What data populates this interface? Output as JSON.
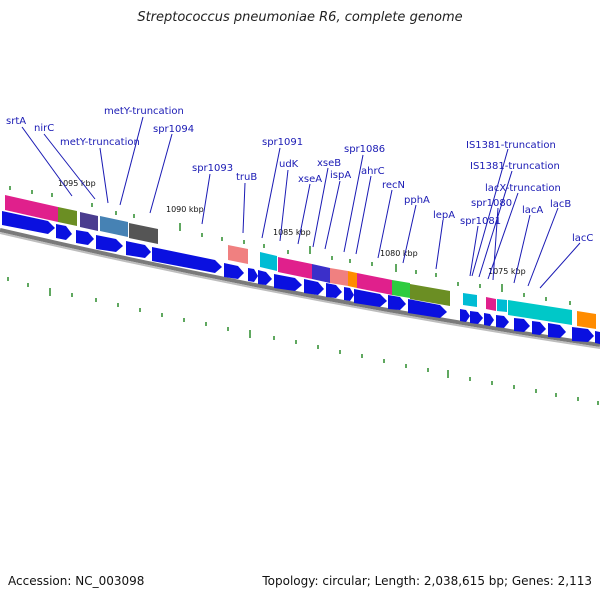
{
  "title": "Streptococcus pneumoniae R6, complete genome",
  "accession": "Accession: NC_003098",
  "stats": "Topology: circular; Length: 2,038,615 bp; Genes: 2,113",
  "colors": {
    "cds": "#0a10e0",
    "backbone": "#707070",
    "tick": "#2a8a2a",
    "label": "#1a1ab4",
    "leader": "#1a1ab4"
  },
  "kbp_labels": [
    {
      "text": "1095 kbp",
      "pos": 1095
    },
    {
      "text": "1090 kbp",
      "pos": 1090
    },
    {
      "text": "1085 kbp",
      "pos": 1085
    },
    {
      "text": "1080 kbp",
      "pos": 1080
    },
    {
      "text": "1075 kbp",
      "pos": 1075
    }
  ],
  "gene_labels": [
    {
      "name": "srtA"
    },
    {
      "name": "nirC"
    },
    {
      "name": "metY-truncation"
    },
    {
      "name": "metY-truncation"
    },
    {
      "name": "spr1094"
    },
    {
      "name": "spr1093"
    },
    {
      "name": "truB"
    },
    {
      "name": "spr1091"
    },
    {
      "name": "udK"
    },
    {
      "name": "xseA"
    },
    {
      "name": "xseB"
    },
    {
      "name": "ispA"
    },
    {
      "name": "spr1086"
    },
    {
      "name": "ahrC"
    },
    {
      "name": "recN"
    },
    {
      "name": "pphA"
    },
    {
      "name": "lepA"
    },
    {
      "name": "IS1381-truncation"
    },
    {
      "name": "IS1381-truncation"
    },
    {
      "name": "lacX-truncation"
    },
    {
      "name": "spr1080"
    },
    {
      "name": "spr1081"
    },
    {
      "name": "lacA"
    },
    {
      "name": "lacB"
    },
    {
      "name": "lacC"
    }
  ],
  "cog_colors": [
    "#e0208c",
    "#6b8e23",
    "#4b3d8f",
    "#4682b4",
    "#555555",
    "#f08080",
    "#00bcd4",
    "#ff8c00",
    "#2ecc40"
  ]
}
